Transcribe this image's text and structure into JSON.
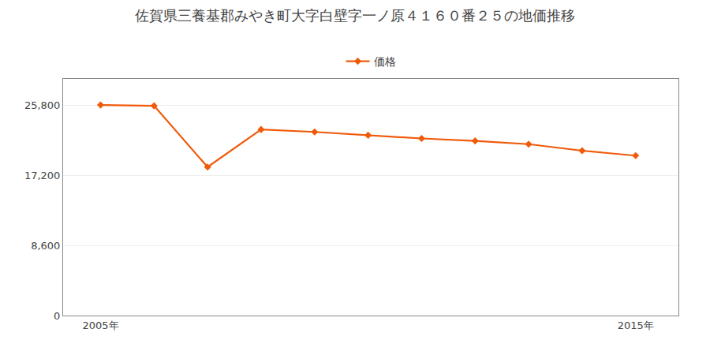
{
  "chart_data": {
    "type": "line",
    "title": "佐賀県三養基郡みやき町大字白壁字一ノ原４１６０番２５の地価推移",
    "x": [
      2005,
      2006,
      2007,
      2008,
      2009,
      2010,
      2011,
      2012,
      2013,
      2014,
      2015
    ],
    "series": [
      {
        "name": "価格",
        "color": "#f05a0a",
        "marker": "diamond",
        "values": [
          25800,
          25700,
          18200,
          22800,
          22500,
          22100,
          21700,
          21400,
          21000,
          20200,
          19600
        ]
      }
    ],
    "xlim": [
      2004.3,
      2015.8
    ],
    "xticks": [
      {
        "value": 2005,
        "label": "2005年"
      },
      {
        "value": 2015,
        "label": "2015年"
      }
    ],
    "ylim": [
      0,
      29000
    ],
    "yticks": [
      0,
      {
        "value": 8600,
        "label": "8,600"
      },
      {
        "value": 17200,
        "label": "17,200"
      },
      {
        "value": 25800,
        "label": "25,800"
      }
    ],
    "grid": "y",
    "legend": "top"
  }
}
